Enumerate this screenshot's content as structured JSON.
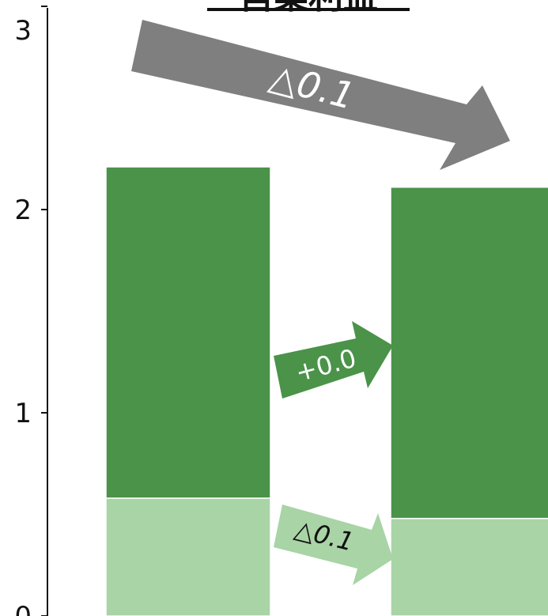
{
  "chart_data": {
    "type": "bar",
    "stacked": true,
    "title": "営業利益",
    "categories": [
      "",
      ""
    ],
    "series": [
      {
        "values": [
          0.58,
          0.48
        ],
        "color": "#a8d4a6"
      },
      {
        "values": [
          1.63,
          1.63
        ],
        "color": "#4a9349"
      }
    ],
    "totals": [
      2.21,
      2.11
    ],
    "ylim": [
      0,
      3
    ],
    "yticks": [
      "0",
      "1",
      "2",
      "3"
    ],
    "grid": false,
    "annotations": [
      {
        "label": "△0.1",
        "applies_to": "total",
        "color": "#7f7f7f"
      },
      {
        "label": "+0.0",
        "applies_to": "upper segment",
        "color": "#4a9349"
      },
      {
        "label": "△0.1",
        "applies_to": "lower segment",
        "color": "#a8d4a6"
      }
    ]
  }
}
